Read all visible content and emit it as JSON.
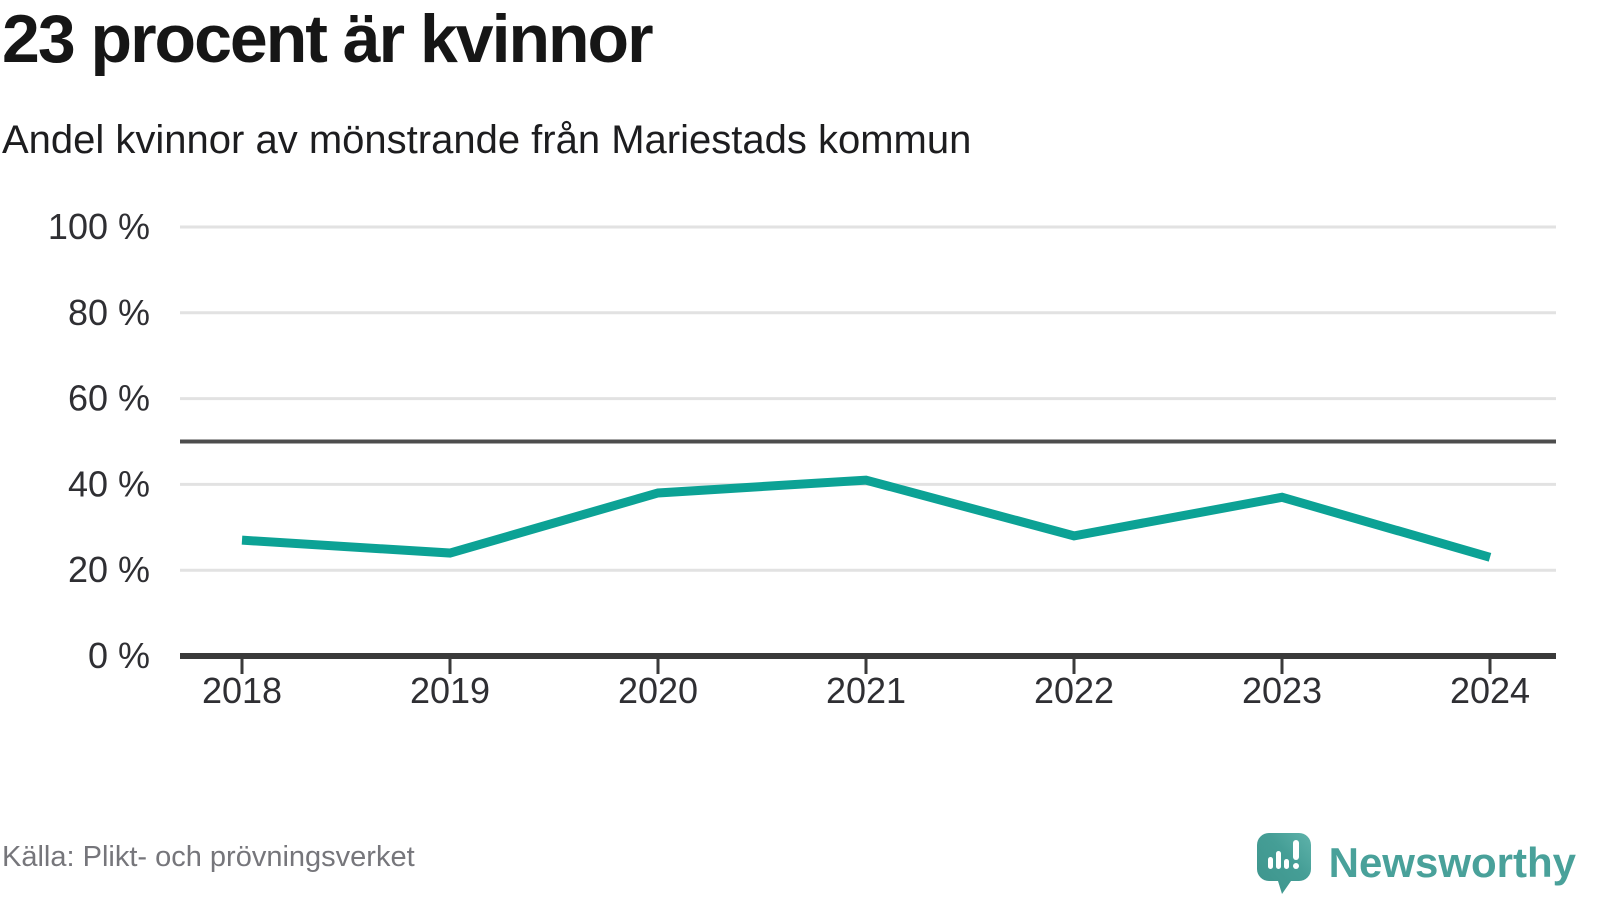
{
  "header": {
    "title": "23 procent är kvinnor",
    "subtitle": "Andel kvinnor av mönstrande från Mariestads kommun"
  },
  "footer": {
    "source": "Källa: Plikt- och prövningsverket",
    "brand": "Newsworthy"
  },
  "chart_data": {
    "type": "line",
    "title": "23 procent är kvinnor",
    "subtitle": "Andel kvinnor av mönstrande från Mariestads kommun",
    "x": [
      2018,
      2019,
      2020,
      2021,
      2022,
      2023,
      2024
    ],
    "series": [
      {
        "name": "Andel kvinnor av mönstrande",
        "values": [
          27,
          24,
          38,
          41,
          28,
          37,
          23
        ]
      }
    ],
    "unit": "%",
    "ylim": [
      0,
      100
    ],
    "y_ticks": [
      0,
      20,
      40,
      60,
      80,
      100
    ],
    "y_tick_suffix": " %",
    "reference_line": 50,
    "grid": true,
    "legend": false,
    "colors": {
      "line": "#0ca295",
      "reference_line": "#4d4d4d",
      "gridline": "#e2e2e2",
      "axis": "#3a3a3a",
      "tick_label": "#2f2f33"
    }
  },
  "colors": {
    "brand_teal": "#459e96",
    "brand_teal_light": "#5fb3ab",
    "text_dark": "#161616",
    "source_gray": "#76767b"
  }
}
